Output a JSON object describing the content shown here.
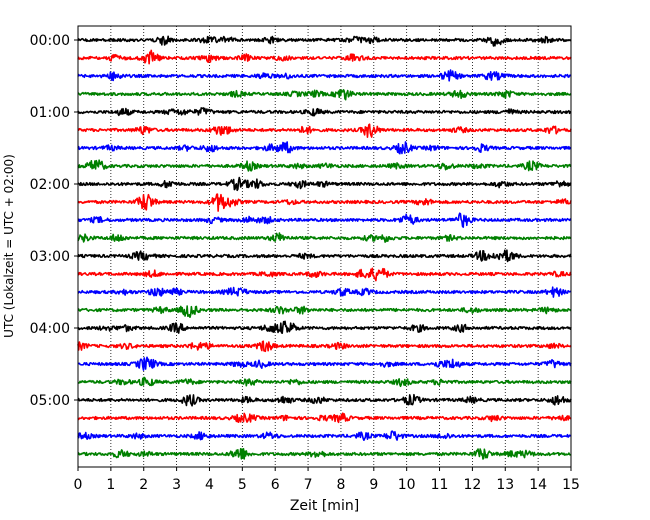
{
  "chart_data": {
    "type": "line",
    "subtype": "helicorder",
    "xlabel": "Zeit  [min]",
    "ylabel": "UTC (Lokalzeit = UTC + 02:00)",
    "xlim": [
      0,
      15
    ],
    "x_ticks": [
      "0",
      "1",
      "2",
      "3",
      "4",
      "5",
      "6",
      "7",
      "8",
      "9",
      "10",
      "11",
      "12",
      "13",
      "14",
      "15"
    ],
    "y_ticks": [
      {
        "label": "00:00",
        "row": 0
      },
      {
        "label": "01:00",
        "row": 4
      },
      {
        "label": "02:00",
        "row": 8
      },
      {
        "label": "03:00",
        "row": 12
      },
      {
        "label": "04:00",
        "row": 16
      },
      {
        "label": "05:00",
        "row": 20
      }
    ],
    "trace_minutes": 15,
    "row_count": 24,
    "row_color_cycle": [
      "#000000",
      "#ff0000",
      "#0000ff",
      "#008000"
    ],
    "vertical_grid": "dotted",
    "bursts": [
      {
        "row": 0,
        "minute": 12.7,
        "amp": 1.6
      },
      {
        "row": 0,
        "minute": 2.6,
        "amp": 1.2
      },
      {
        "row": 1,
        "minute": 2.2,
        "amp": 1.1
      },
      {
        "row": 2,
        "minute": 1.1,
        "amp": 1.1
      },
      {
        "row": 3,
        "minute": 11.6,
        "amp": 1.1
      },
      {
        "row": 5,
        "minute": 8.9,
        "amp": 1.2
      },
      {
        "row": 5,
        "minute": 2.0,
        "amp": 1.1
      },
      {
        "row": 6,
        "minute": 6.3,
        "amp": 1.6
      },
      {
        "row": 6,
        "minute": 9.9,
        "amp": 1.7
      },
      {
        "row": 7,
        "minute": 0.6,
        "amp": 1.3
      },
      {
        "row": 7,
        "minute": 5.2,
        "amp": 1.2
      },
      {
        "row": 7,
        "minute": 13.8,
        "amp": 1.3
      },
      {
        "row": 8,
        "minute": 4.9,
        "amp": 1.3
      },
      {
        "row": 8,
        "minute": 5.4,
        "amp": 1.2
      },
      {
        "row": 9,
        "minute": 4.3,
        "amp": 2.6
      },
      {
        "row": 9,
        "minute": 2.1,
        "amp": 1.4
      },
      {
        "row": 10,
        "minute": 11.7,
        "amp": 2.0
      },
      {
        "row": 11,
        "minute": 1.2,
        "amp": 1.0
      },
      {
        "row": 12,
        "minute": 12.3,
        "amp": 1.3
      },
      {
        "row": 13,
        "minute": 9.2,
        "amp": 1.6
      },
      {
        "row": 14,
        "minute": 2.4,
        "amp": 1.2
      },
      {
        "row": 14,
        "minute": 14.5,
        "amp": 1.3
      },
      {
        "row": 15,
        "minute": 3.4,
        "amp": 1.5
      },
      {
        "row": 16,
        "minute": 3.0,
        "amp": 1.3
      },
      {
        "row": 16,
        "minute": 6.4,
        "amp": 1.8
      },
      {
        "row": 17,
        "minute": 5.7,
        "amp": 1.6
      },
      {
        "row": 18,
        "minute": 2.0,
        "amp": 1.3
      },
      {
        "row": 18,
        "minute": 11.4,
        "amp": 1.3
      },
      {
        "row": 19,
        "minute": 2.1,
        "amp": 1.2
      },
      {
        "row": 20,
        "minute": 3.4,
        "amp": 1.6
      },
      {
        "row": 20,
        "minute": 14.6,
        "amp": 1.4
      },
      {
        "row": 21,
        "minute": 8.0,
        "amp": 1.2
      },
      {
        "row": 22,
        "minute": 9.6,
        "amp": 1.4
      },
      {
        "row": 23,
        "minute": 12.3,
        "amp": 1.6
      },
      {
        "row": 23,
        "minute": 4.9,
        "amp": 1.2
      }
    ]
  }
}
